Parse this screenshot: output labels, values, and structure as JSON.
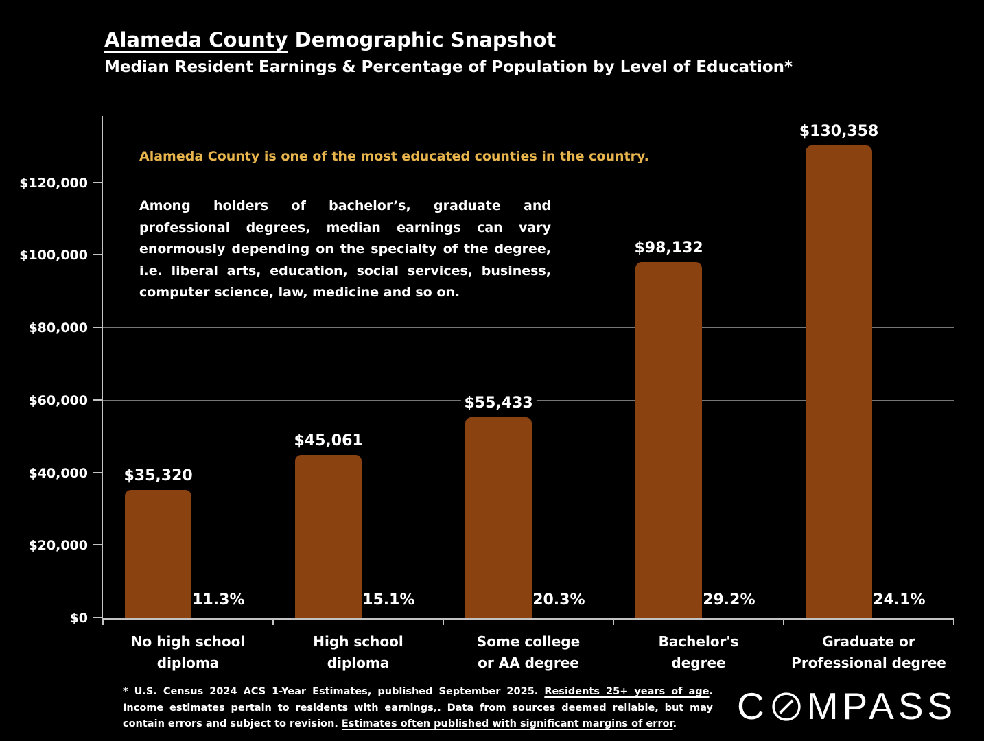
{
  "title": {
    "underlined": "Alameda County",
    "rest": " Demographic Snapshot"
  },
  "subtitle": "Median Resident Earnings & Percentage of Population by Level of Education*",
  "annotation": {
    "highlight": "Alameda County is one of the most educated counties in the country.",
    "body": "Among holders of bachelor’s, graduate and professional degrees, median earnings can vary enormously depending on the specialty of the degree, i.e. liberal arts, education, social services, business, computer science, law, medicine and so on."
  },
  "chart_data": {
    "type": "bar",
    "title": "Median Resident Earnings & Percentage of Population by Level of Education",
    "categories": [
      "No high school\ndiploma",
      "High school\ndiploma",
      "Some college\nor AA degree",
      "Bachelor's\ndegree",
      "Graduate or\nProfessional degree"
    ],
    "series": [
      {
        "name": "Median resident earnings",
        "values": [
          35320,
          45061,
          55433,
          98132,
          130358
        ],
        "labels": [
          "$35,320",
          "$45,061",
          "$55,433",
          "$98,132",
          "$130,358"
        ]
      },
      {
        "name": "Percentage of population",
        "values": [
          11.3,
          15.1,
          20.3,
          29.2,
          24.1
        ],
        "labels": [
          "11.3%",
          "15.1%",
          "20.3%",
          "29.2%",
          "24.1%"
        ]
      }
    ],
    "xlabel": "",
    "ylabel": "",
    "ylim": [
      0,
      138500
    ],
    "y_ticks": [
      {
        "value": 0,
        "label": "$0"
      },
      {
        "value": 20000,
        "label": "$20,000"
      },
      {
        "value": 40000,
        "label": "$40,000"
      },
      {
        "value": 60000,
        "label": "$60,000"
      },
      {
        "value": 80000,
        "label": "$80,000"
      },
      {
        "value": 100000,
        "label": "$100,000"
      },
      {
        "value": 120000,
        "label": "$120,000"
      }
    ],
    "grid": true,
    "legend": "none",
    "bar_color": "#8B4211",
    "background_color": "#000000",
    "accent_text_color": "#E8B54D"
  },
  "footnote": {
    "segments": [
      {
        "text": "* U.S. Census 2024 ACS 1-Year Estimates, published September 2025. ",
        "underline": false
      },
      {
        "text": "Residents 25+ years of age",
        "underline": true
      },
      {
        "text": ". Income estimates pertain to residents with earnings,. Data from sources deemed reliable, but may contain errors and subject to revision. ",
        "underline": false
      },
      {
        "text": "Estimates often published with significant margins of error",
        "underline": true
      },
      {
        "text": ".",
        "underline": false
      }
    ]
  },
  "logo": {
    "name": "COMPASS",
    "prefix": "C",
    "suffix": "MPASS"
  }
}
